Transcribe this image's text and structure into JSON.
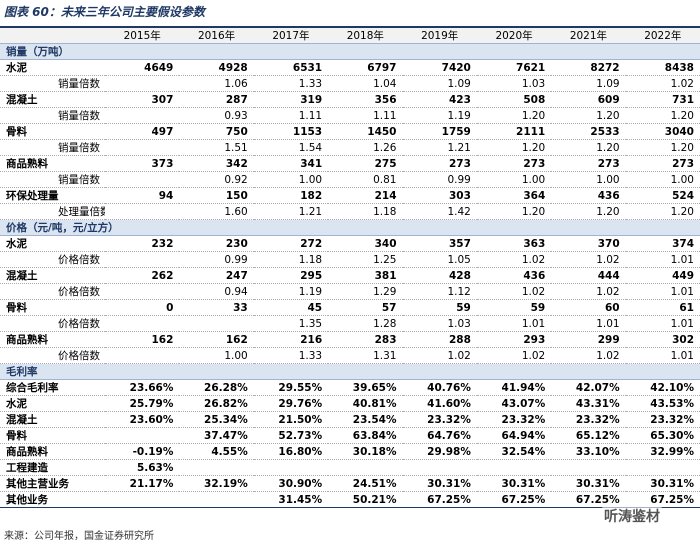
{
  "header": {
    "title": "图表 60：未来三年公司主要假设参数"
  },
  "table": {
    "columns": [
      "2015年",
      "2016年",
      "2017年",
      "2018年",
      "2019年",
      "2020年",
      "2021年",
      "2022年"
    ],
    "sections": [
      {
        "title": "销量（万吨）",
        "items": [
          {
            "label": "水泥",
            "cells": [
              "4649",
              "4928",
              "6531",
              "6797",
              "7420",
              "7621",
              "8272",
              "8438"
            ],
            "ratio": {
              "label": "销量倍数",
              "cells": [
                null,
                "1.06",
                "1.33",
                "1.04",
                "1.09",
                "1.03",
                "1.09",
                "1.02"
              ]
            }
          },
          {
            "label": "混凝土",
            "cells": [
              "307",
              "287",
              "319",
              "356",
              "423",
              "508",
              "609",
              "731"
            ],
            "ratio": {
              "label": "销量倍数",
              "cells": [
                null,
                "0.93",
                "1.11",
                "1.11",
                "1.19",
                "1.20",
                "1.20",
                "1.20"
              ]
            }
          },
          {
            "label": "骨料",
            "cells": [
              "497",
              "750",
              "1153",
              "1450",
              "1759",
              "2111",
              "2533",
              "3040"
            ],
            "ratio": {
              "label": "销量倍数",
              "cells": [
                null,
                "1.51",
                "1.54",
                "1.26",
                "1.21",
                "1.20",
                "1.20",
                "1.20"
              ]
            }
          },
          {
            "label": "商品熟料",
            "cells": [
              "373",
              "342",
              "341",
              "275",
              "273",
              "273",
              "273",
              "273"
            ],
            "ratio": {
              "label": "销量倍数",
              "cells": [
                null,
                "0.92",
                "1.00",
                "0.81",
                "0.99",
                "1.00",
                "1.00",
                "1.00"
              ]
            }
          },
          {
            "label": "环保处理量",
            "cells": [
              "94",
              "150",
              "182",
              "214",
              "303",
              "364",
              "436",
              "524"
            ],
            "ratio": {
              "label": "处理量倍数",
              "cells": [
                null,
                "1.60",
                "1.21",
                "1.18",
                "1.42",
                "1.20",
                "1.20",
                "1.20"
              ]
            }
          }
        ]
      },
      {
        "title": "价格（元/吨，元/立方）",
        "items": [
          {
            "label": "水泥",
            "cells": [
              "232",
              "230",
              "272",
              "340",
              "357",
              "363",
              "370",
              "374"
            ],
            "ratio": {
              "label": "价格倍数",
              "cells": [
                null,
                "0.99",
                "1.18",
                "1.25",
                "1.05",
                "1.02",
                "1.02",
                "1.01"
              ]
            }
          },
          {
            "label": "混凝土",
            "cells": [
              "262",
              "247",
              "295",
              "381",
              "428",
              "436",
              "444",
              "449"
            ],
            "ratio": {
              "label": "价格倍数",
              "cells": [
                null,
                "0.94",
                "1.19",
                "1.29",
                "1.12",
                "1.02",
                "1.02",
                "1.01"
              ]
            }
          },
          {
            "label": "骨料",
            "cells": [
              "0",
              "33",
              "45",
              "57",
              "59",
              "59",
              "60",
              "61"
            ],
            "ratio": {
              "label": "价格倍数",
              "cells": [
                null,
                null,
                "1.35",
                "1.28",
                "1.03",
                "1.01",
                "1.01",
                "1.01"
              ]
            }
          },
          {
            "label": "商品熟料",
            "cells": [
              "162",
              "162",
              "216",
              "283",
              "288",
              "293",
              "299",
              "302"
            ],
            "ratio": {
              "label": "价格倍数",
              "cells": [
                null,
                "1.00",
                "1.33",
                "1.31",
                "1.02",
                "1.02",
                "1.02",
                "1.01"
              ]
            }
          }
        ]
      },
      {
        "title": "毛利率",
        "items": [
          {
            "label": "综合毛利率",
            "cells": [
              "23.66%",
              "26.28%",
              "29.55%",
              "39.65%",
              "40.76%",
              "41.94%",
              "42.07%",
              "42.10%"
            ]
          },
          {
            "label": "水泥",
            "cells": [
              "25.79%",
              "26.82%",
              "29.76%",
              "40.81%",
              "41.60%",
              "43.07%",
              "43.31%",
              "43.53%"
            ]
          },
          {
            "label": "混凝土",
            "cells": [
              "23.60%",
              "25.34%",
              "21.50%",
              "23.54%",
              "23.32%",
              "23.32%",
              "23.32%",
              "23.32%"
            ]
          },
          {
            "label": "骨料",
            "cells": [
              null,
              "37.47%",
              "52.73%",
              "63.84%",
              "64.76%",
              "64.94%",
              "65.12%",
              "65.30%"
            ]
          },
          {
            "label": "商品熟料",
            "cells": [
              "-0.19%",
              "4.55%",
              "16.80%",
              "30.18%",
              "29.98%",
              "32.54%",
              "33.10%",
              "32.99%"
            ]
          },
          {
            "label": "工程建造",
            "cells": [
              "5.63%",
              null,
              null,
              null,
              null,
              null,
              null,
              null
            ]
          },
          {
            "label": "其他主营业务",
            "cells": [
              "21.17%",
              "32.19%",
              "30.90%",
              "24.51%",
              "30.31%",
              "30.31%",
              "30.31%",
              "30.31%"
            ]
          },
          {
            "label": "其他业务",
            "cells": [
              null,
              null,
              "31.45%",
              "50.21%",
              "67.25%",
              "67.25%",
              "67.25%",
              "67.25%"
            ]
          }
        ]
      }
    ]
  },
  "footer": {
    "source": "来源：公司年报，国金证券研究所",
    "watermark": "听涛鉴材"
  }
}
